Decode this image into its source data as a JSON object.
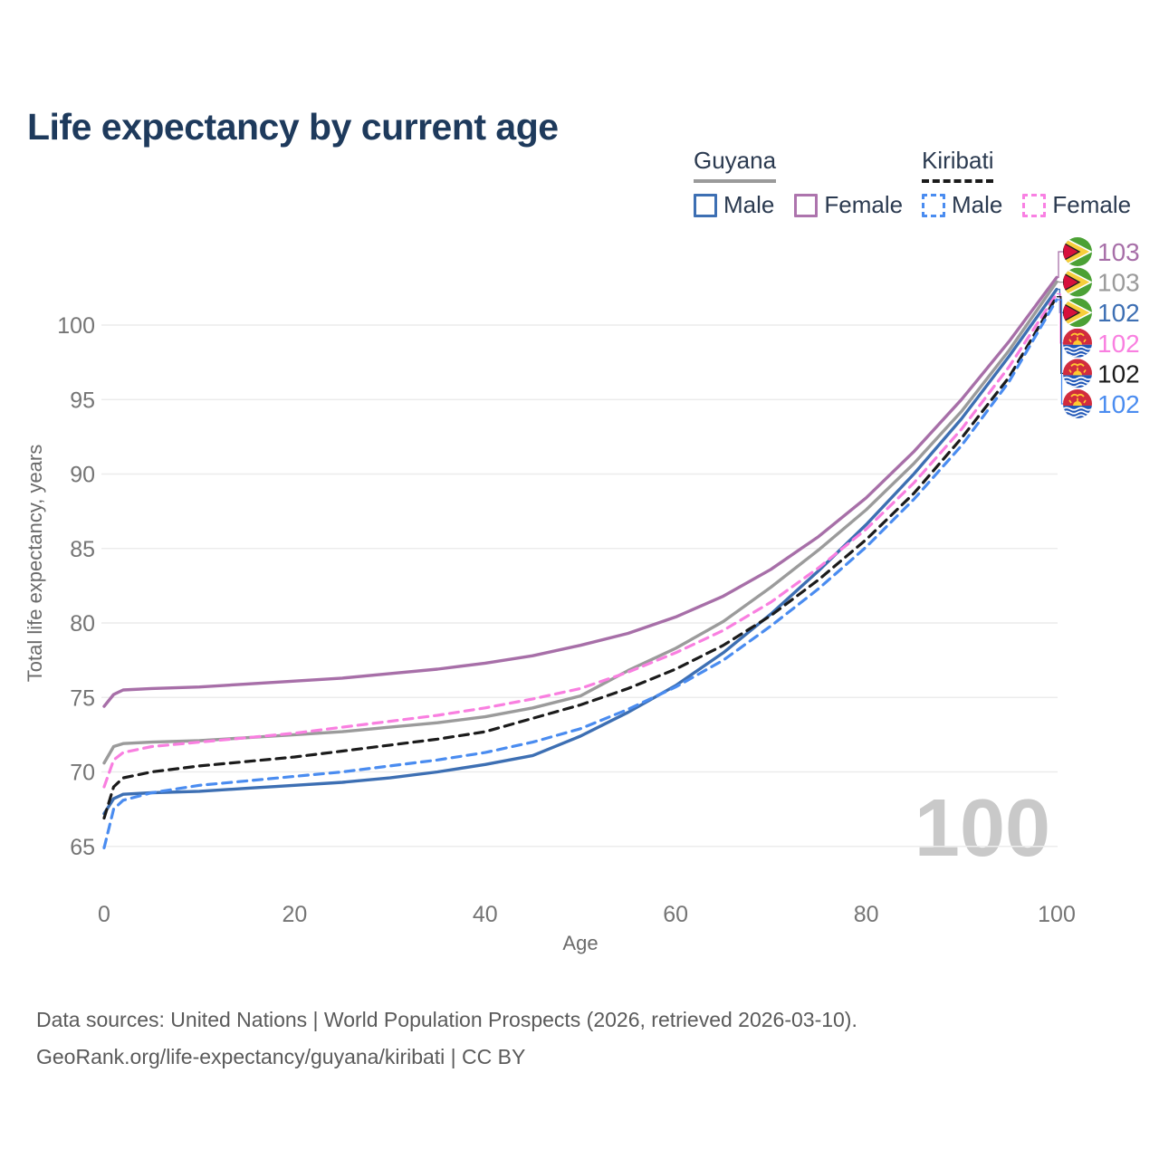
{
  "title": "Life expectancy by current age",
  "watermark": "100",
  "legend": {
    "groups": [
      {
        "country": "Guyana",
        "line_style": "solid",
        "underline_color": "#9a9a9a",
        "items": [
          {
            "label": "Male",
            "color": "#3d6fb3",
            "dashed": false
          },
          {
            "label": "Female",
            "color": "#ad74ad",
            "dashed": false
          }
        ]
      },
      {
        "country": "Kiribati",
        "line_style": "dashed",
        "underline_color": "#1a1a1a",
        "items": [
          {
            "label": "Male",
            "color": "#4a8cf0",
            "dashed": true
          },
          {
            "label": "Female",
            "color": "#f980e3",
            "dashed": true
          }
        ]
      }
    ]
  },
  "footer": {
    "line1": "Data sources: United Nations | World Population Prospects (2026, retrieved 2026-03-10).",
    "line2": "GeoRank.org/life-expectancy/guyana/kiribati | CC BY"
  },
  "chart_data": {
    "type": "line",
    "title": "Life expectancy by current age",
    "xlabel": "Age",
    "ylabel": "Total life expectancy, years",
    "xlim": [
      0,
      100
    ],
    "ylim": [
      63,
      104.5
    ],
    "xticks": [
      0,
      20,
      40,
      60,
      80,
      100
    ],
    "yticks": [
      65,
      70,
      75,
      80,
      85,
      90,
      95,
      100
    ],
    "grid": "horizontal",
    "legend_position": "top-right",
    "x": [
      0,
      1,
      2,
      5,
      10,
      15,
      20,
      25,
      30,
      35,
      40,
      45,
      50,
      55,
      60,
      65,
      70,
      75,
      80,
      85,
      90,
      95,
      100
    ],
    "series": [
      {
        "name": "Guyana Female",
        "country": "Guyana",
        "sex": "Female",
        "flag": "guyana",
        "color": "#a76fa8",
        "dash": false,
        "end_label": "103",
        "values": [
          74.4,
          75.2,
          75.5,
          75.6,
          75.7,
          75.9,
          76.1,
          76.3,
          76.6,
          76.9,
          77.3,
          77.8,
          78.5,
          79.3,
          80.4,
          81.8,
          83.6,
          85.8,
          88.4,
          91.5,
          95.0,
          98.9,
          103.2
        ]
      },
      {
        "name": "Guyana All",
        "country": "Guyana",
        "sex": "All",
        "flag": "guyana",
        "color": "#9b9b9b",
        "dash": false,
        "end_label": "103",
        "values": [
          70.6,
          71.7,
          71.9,
          72.0,
          72.1,
          72.3,
          72.5,
          72.7,
          73.0,
          73.3,
          73.7,
          74.3,
          75.1,
          76.8,
          78.3,
          80.1,
          82.4,
          84.9,
          87.6,
          90.7,
          94.2,
          98.3,
          102.9
        ]
      },
      {
        "name": "Guyana Male",
        "country": "Guyana",
        "sex": "Male",
        "flag": "guyana",
        "color": "#3d6fb3",
        "dash": false,
        "end_label": "102",
        "values": [
          67.2,
          68.2,
          68.5,
          68.6,
          68.7,
          68.9,
          69.1,
          69.3,
          69.6,
          70.0,
          70.5,
          71.1,
          72.4,
          74.0,
          75.8,
          78.0,
          80.6,
          83.5,
          86.6,
          90.0,
          93.7,
          97.9,
          102.4
        ]
      },
      {
        "name": "Kiribati Female",
        "country": "Kiribati",
        "sex": "Female",
        "flag": "kiribati",
        "color": "#f97fe0",
        "dash": true,
        "end_label": "102",
        "values": [
          69.0,
          70.8,
          71.3,
          71.7,
          72.0,
          72.3,
          72.6,
          73.0,
          73.4,
          73.8,
          74.3,
          74.9,
          75.6,
          76.7,
          78.0,
          79.5,
          81.4,
          83.7,
          86.3,
          89.4,
          93.0,
          97.2,
          102.1
        ]
      },
      {
        "name": "Kiribati All",
        "country": "Kiribati",
        "sex": "All",
        "flag": "kiribati",
        "color": "#1b1b1b",
        "dash": true,
        "end_label": "102",
        "values": [
          66.9,
          69.0,
          69.6,
          70.0,
          70.4,
          70.7,
          71.0,
          71.4,
          71.8,
          72.2,
          72.7,
          73.6,
          74.5,
          75.6,
          76.9,
          78.5,
          80.5,
          82.9,
          85.6,
          88.7,
          92.4,
          96.5,
          101.9
        ]
      },
      {
        "name": "Kiribati Male",
        "country": "Kiribati",
        "sex": "Male",
        "flag": "kiribati",
        "color": "#4a8cf0",
        "dash": true,
        "end_label": "102",
        "values": [
          64.9,
          67.5,
          68.1,
          68.6,
          69.1,
          69.4,
          69.7,
          70.0,
          70.4,
          70.8,
          71.3,
          72.0,
          72.9,
          74.2,
          75.7,
          77.5,
          79.8,
          82.3,
          85.1,
          88.3,
          91.9,
          96.2,
          101.7
        ]
      }
    ]
  }
}
